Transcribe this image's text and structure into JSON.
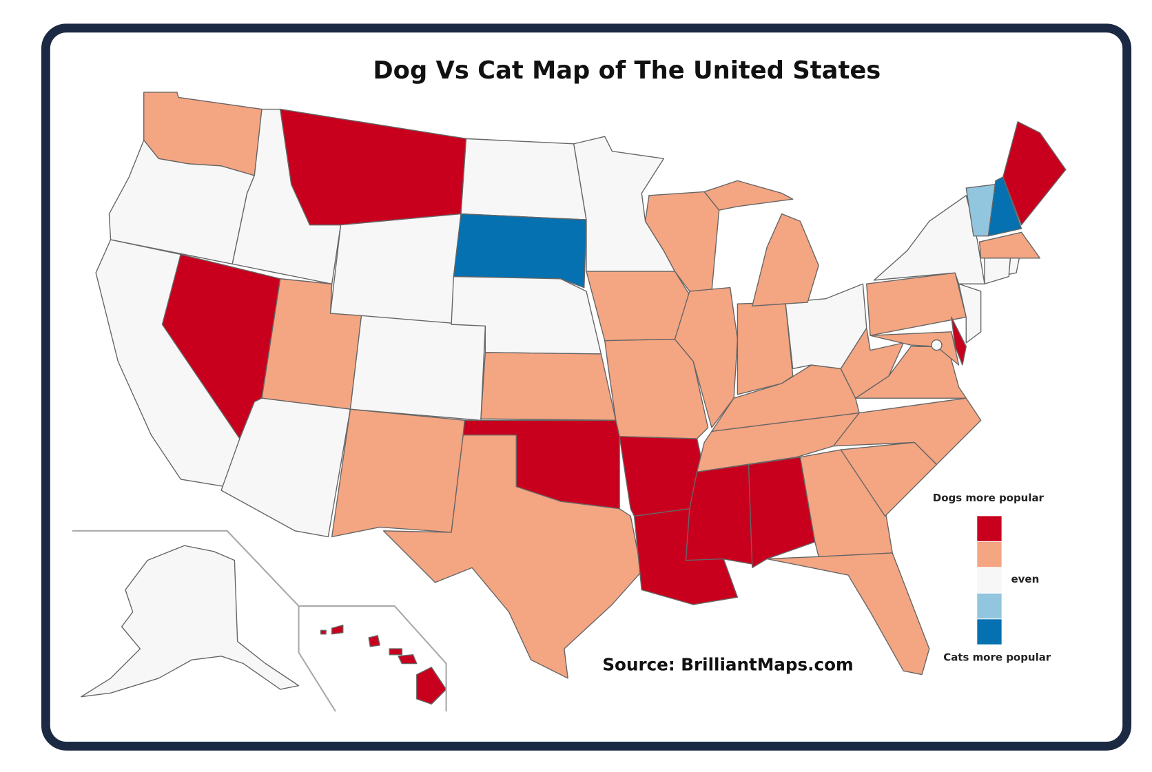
{
  "title": "Dog Vs Cat Map of The United States",
  "source": "Source: BrilliantMaps.com",
  "legend": {
    "top_label": "Dogs more popular",
    "middle_label": "even",
    "bottom_label": "Cats more popular",
    "colors": [
      "#c8001e",
      "#f4a582",
      "#f7f7f7",
      "#92c5de",
      "#0571b0"
    ]
  }
}
